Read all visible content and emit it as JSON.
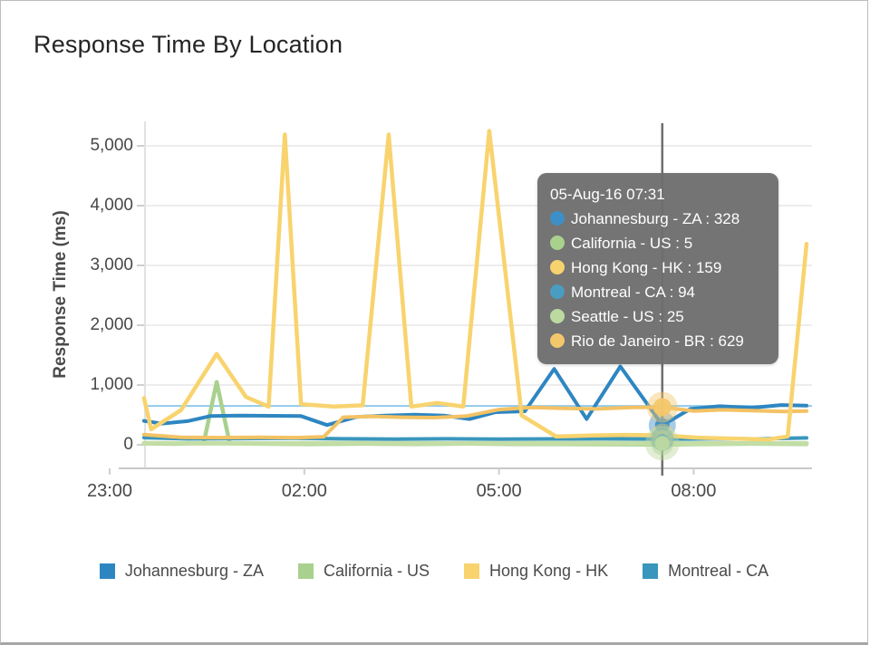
{
  "page": {
    "title": "Response Time By Location"
  },
  "chart_data": {
    "type": "line",
    "title": "Response Time By Location",
    "xlabel": "",
    "ylabel": "Response Time (ms)",
    "ylim": [
      0,
      5000
    ],
    "yticks": [
      0,
      1000,
      2000,
      3000,
      4000,
      5000
    ],
    "ytick_labels": [
      "0",
      "1,000",
      "2,000",
      "3,000",
      "4,000",
      "5,000"
    ],
    "xticks": [
      "23:00",
      "02:00",
      "05:00",
      "08:00"
    ],
    "x_unit": "hours_after_23:00",
    "x_range": [
      0.53,
      10.74
    ],
    "grid": "horizontal-only",
    "legend_position": "bottom",
    "threshold_line": {
      "value": 650,
      "color": "#8fcaec"
    },
    "crosshair": {
      "time": "07:31",
      "color": "#6e6e6e"
    },
    "series": [
      {
        "name": "Johannesburg - ZA",
        "color": "#2e86c1",
        "points": [
          [
            0.53,
            400
          ],
          [
            0.8,
            355
          ],
          [
            1.2,
            395
          ],
          [
            1.55,
            480
          ],
          [
            2.0,
            490
          ],
          [
            2.5,
            485
          ],
          [
            2.95,
            480
          ],
          [
            3.35,
            330
          ],
          [
            3.8,
            465
          ],
          [
            4.25,
            490
          ],
          [
            4.7,
            505
          ],
          [
            5.15,
            490
          ],
          [
            5.55,
            430
          ],
          [
            5.95,
            545
          ],
          [
            6.4,
            560
          ],
          [
            6.85,
            1270
          ],
          [
            7.35,
            430
          ],
          [
            7.87,
            1310
          ],
          [
            8.52,
            328
          ],
          [
            8.95,
            600
          ],
          [
            9.4,
            645
          ],
          [
            9.9,
            620
          ],
          [
            10.35,
            665
          ],
          [
            10.74,
            655
          ]
        ]
      },
      {
        "name": "California - US",
        "color": "#a9d18e",
        "points": [
          [
            0.53,
            22
          ],
          [
            1.0,
            15
          ],
          [
            1.45,
            30
          ],
          [
            1.65,
            1050
          ],
          [
            1.85,
            25
          ],
          [
            2.4,
            15
          ],
          [
            3.1,
            12
          ],
          [
            3.9,
            16
          ],
          [
            4.7,
            12
          ],
          [
            5.5,
            18
          ],
          [
            6.2,
            12
          ],
          [
            7.0,
            10
          ],
          [
            7.8,
            8
          ],
          [
            8.52,
            5
          ],
          [
            9.2,
            12
          ],
          [
            9.9,
            16
          ],
          [
            10.74,
            12
          ]
        ]
      },
      {
        "name": "Hong Kong - HK",
        "color": "#f8d36e",
        "points": [
          [
            0.53,
            780
          ],
          [
            0.64,
            260
          ],
          [
            1.1,
            580
          ],
          [
            1.65,
            1520
          ],
          [
            2.1,
            800
          ],
          [
            2.45,
            640
          ],
          [
            2.7,
            5190
          ],
          [
            2.95,
            680
          ],
          [
            3.45,
            640
          ],
          [
            3.9,
            660
          ],
          [
            4.3,
            5190
          ],
          [
            4.65,
            640
          ],
          [
            5.05,
            700
          ],
          [
            5.45,
            640
          ],
          [
            5.85,
            5250
          ],
          [
            6.35,
            490
          ],
          [
            6.88,
            140
          ],
          [
            7.4,
            155
          ],
          [
            7.95,
            165
          ],
          [
            8.52,
            159
          ],
          [
            9.05,
            120
          ],
          [
            9.6,
            105
          ],
          [
            10.15,
            90
          ],
          [
            10.45,
            140
          ],
          [
            10.74,
            3360
          ]
        ]
      },
      {
        "name": "Montreal - CA",
        "color": "#3996bd",
        "points": [
          [
            0.53,
            120
          ],
          [
            1.2,
            100
          ],
          [
            2.0,
            105
          ],
          [
            2.8,
            110
          ],
          [
            3.6,
            100
          ],
          [
            4.4,
            95
          ],
          [
            5.2,
            100
          ],
          [
            6.0,
            95
          ],
          [
            6.8,
            98
          ],
          [
            7.6,
            100
          ],
          [
            8.52,
            94
          ],
          [
            9.3,
            100
          ],
          [
            10.0,
            98
          ],
          [
            10.74,
            115
          ]
        ]
      },
      {
        "name": "Seattle - US",
        "color": "#c3dda6",
        "points": [
          [
            0.53,
            28
          ],
          [
            1.5,
            25
          ],
          [
            2.5,
            22
          ],
          [
            3.5,
            28
          ],
          [
            4.5,
            25
          ],
          [
            5.5,
            22
          ],
          [
            6.5,
            25
          ],
          [
            7.5,
            28
          ],
          [
            8.52,
            25
          ],
          [
            9.5,
            22
          ],
          [
            10.74,
            25
          ]
        ]
      },
      {
        "name": "Rio de Janeiro - BR",
        "color": "#f4c264",
        "points": [
          [
            0.53,
            170
          ],
          [
            1.1,
            125
          ],
          [
            1.7,
            120
          ],
          [
            2.3,
            125
          ],
          [
            2.9,
            120
          ],
          [
            3.3,
            135
          ],
          [
            3.6,
            460
          ],
          [
            4.05,
            475
          ],
          [
            4.5,
            460
          ],
          [
            5.0,
            455
          ],
          [
            5.5,
            480
          ],
          [
            6.0,
            590
          ],
          [
            6.5,
            625
          ],
          [
            7.0,
            610
          ],
          [
            7.5,
            600
          ],
          [
            8.05,
            625
          ],
          [
            8.52,
            629
          ],
          [
            9.0,
            565
          ],
          [
            9.45,
            585
          ],
          [
            9.95,
            570
          ],
          [
            10.4,
            558
          ],
          [
            10.74,
            565
          ]
        ]
      }
    ]
  },
  "tooltip": {
    "header": "05-Aug-16 07:31",
    "rows": [
      {
        "label": "Johannesburg - ZA",
        "value": "328",
        "color": "#3d8fc6"
      },
      {
        "label": "California - US",
        "value": "5",
        "color": "#a9d18e"
      },
      {
        "label": "Hong Kong - HK",
        "value": "159",
        "color": "#f6d36e"
      },
      {
        "label": "Montreal - CA",
        "value": "94",
        "color": "#4a9cc0"
      },
      {
        "label": "Seattle - US",
        "value": "25",
        "color": "#bcd9a0"
      },
      {
        "label": "Rio de Janeiro - BR",
        "value": "629",
        "color": "#f3c76b"
      }
    ]
  },
  "legend": {
    "items": [
      {
        "label": "Johannesburg - ZA",
        "color": "#2e86c1"
      },
      {
        "label": "California - US",
        "color": "#a9d18e"
      },
      {
        "label": "Hong Kong - HK",
        "color": "#f8d36e"
      },
      {
        "label": "Montreal - CA",
        "color": "#3996bd"
      }
    ]
  }
}
